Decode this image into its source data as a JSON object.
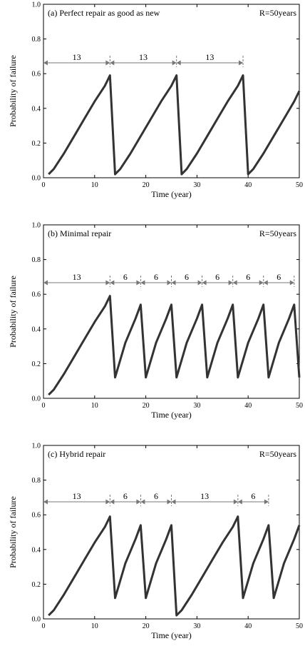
{
  "chart_data": [
    {
      "type": "line",
      "title": "(a) Perfect repair as good as new",
      "annotation": "R=50years",
      "xlabel": "Time (year)",
      "ylabel": "Probability of failure",
      "xlim": [
        0,
        50
      ],
      "ylim": [
        0,
        1.0
      ],
      "xticks": [
        0,
        10,
        20,
        30,
        40,
        50
      ],
      "yticks": [
        0.0,
        0.2,
        0.4,
        0.6,
        0.8,
        1.0
      ],
      "intervals": [
        {
          "start": 0,
          "end": 13,
          "label": "13"
        },
        {
          "start": 13,
          "end": 26,
          "label": "13"
        },
        {
          "start": 26,
          "end": 39,
          "label": "13"
        }
      ],
      "series": [
        {
          "x": [
            1,
            2,
            4,
            6,
            8,
            10,
            12,
            13,
            14,
            15,
            17,
            19,
            21,
            23,
            25,
            26,
            27,
            28,
            30,
            32,
            34,
            36,
            38,
            39,
            40,
            41,
            43,
            45,
            47,
            49,
            50
          ],
          "y": [
            0.02,
            0.05,
            0.14,
            0.24,
            0.34,
            0.44,
            0.53,
            0.59,
            0.02,
            0.05,
            0.14,
            0.24,
            0.34,
            0.44,
            0.53,
            0.59,
            0.02,
            0.05,
            0.14,
            0.24,
            0.34,
            0.44,
            0.53,
            0.59,
            0.02,
            0.05,
            0.14,
            0.24,
            0.34,
            0.44,
            0.5
          ]
        }
      ]
    },
    {
      "type": "line",
      "title": "(b) Minimal repair",
      "annotation": "R=50years",
      "xlabel": "Time (year)",
      "ylabel": "Probability of failure",
      "xlim": [
        0,
        50
      ],
      "ylim": [
        0,
        1.0
      ],
      "xticks": [
        0,
        10,
        20,
        30,
        40,
        50
      ],
      "yticks": [
        0.0,
        0.2,
        0.4,
        0.6,
        0.8,
        1.0
      ],
      "intervals": [
        {
          "start": 0,
          "end": 13,
          "label": "13"
        },
        {
          "start": 13,
          "end": 19,
          "label": "6"
        },
        {
          "start": 19,
          "end": 25,
          "label": "6"
        },
        {
          "start": 25,
          "end": 31,
          "label": "6"
        },
        {
          "start": 31,
          "end": 37,
          "label": "6"
        },
        {
          "start": 37,
          "end": 43,
          "label": "6"
        },
        {
          "start": 43,
          "end": 49,
          "label": "6"
        }
      ],
      "series": [
        {
          "x": [
            1,
            2,
            4,
            6,
            8,
            10,
            12,
            13,
            14,
            16,
            18,
            19,
            20,
            22,
            24,
            25,
            26,
            28,
            30,
            31,
            32,
            34,
            36,
            37,
            38,
            40,
            42,
            43,
            44,
            46,
            48,
            49,
            50
          ],
          "y": [
            0.02,
            0.05,
            0.14,
            0.24,
            0.34,
            0.44,
            0.53,
            0.59,
            0.12,
            0.32,
            0.46,
            0.54,
            0.12,
            0.32,
            0.46,
            0.54,
            0.12,
            0.32,
            0.46,
            0.54,
            0.12,
            0.32,
            0.46,
            0.54,
            0.12,
            0.32,
            0.46,
            0.54,
            0.12,
            0.32,
            0.46,
            0.54,
            0.12
          ]
        }
      ]
    },
    {
      "type": "line",
      "title": "(c) Hybrid repair",
      "annotation": "R=50years",
      "xlabel": "Time (year)",
      "ylabel": "Probability of failure",
      "xlim": [
        0,
        50
      ],
      "ylim": [
        0,
        1.0
      ],
      "xticks": [
        0,
        10,
        20,
        30,
        40,
        50
      ],
      "yticks": [
        0.0,
        0.2,
        0.4,
        0.6,
        0.8,
        1.0
      ],
      "intervals": [
        {
          "start": 0,
          "end": 13,
          "label": "13"
        },
        {
          "start": 13,
          "end": 19,
          "label": "6"
        },
        {
          "start": 19,
          "end": 25,
          "label": "6"
        },
        {
          "start": 25,
          "end": 38,
          "label": "13"
        },
        {
          "start": 38,
          "end": 44,
          "label": "6"
        }
      ],
      "series": [
        {
          "x": [
            1,
            2,
            4,
            6,
            8,
            10,
            12,
            13,
            14,
            16,
            18,
            19,
            20,
            22,
            24,
            25,
            26,
            27,
            29,
            31,
            33,
            35,
            37,
            38,
            39,
            41,
            43,
            44,
            45,
            47,
            49,
            50
          ],
          "y": [
            0.02,
            0.05,
            0.14,
            0.24,
            0.34,
            0.44,
            0.53,
            0.59,
            0.12,
            0.32,
            0.46,
            0.54,
            0.12,
            0.32,
            0.46,
            0.54,
            0.02,
            0.05,
            0.14,
            0.24,
            0.34,
            0.44,
            0.53,
            0.59,
            0.12,
            0.32,
            0.46,
            0.54,
            0.12,
            0.32,
            0.46,
            0.54
          ]
        }
      ]
    }
  ]
}
